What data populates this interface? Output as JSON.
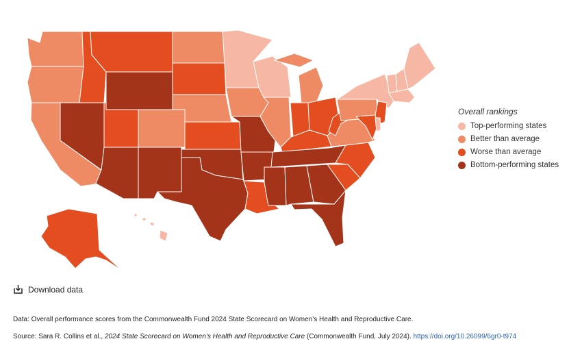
{
  "legend": {
    "title": "Overall rankings",
    "items": [
      {
        "label": "Top-performing states",
        "color": "#f6b8a4"
      },
      {
        "label": "Better than average",
        "color": "#ee8a64"
      },
      {
        "label": "Worse than average",
        "color": "#e44d1f"
      },
      {
        "label": "Bottom-performing states",
        "color": "#a3341a"
      }
    ]
  },
  "download": {
    "label": "Download data"
  },
  "notes": {
    "data_line": "Data: Overall performance scores from the Commonwealth Fund 2024 State Scorecard on Women’s Health and Reproductive Care.",
    "source_prefix": "Source: Sara R. Collins et al., ",
    "source_title": "2024 State Scorecard on Women’s Health and Reproductive Care",
    "source_suffix": " (Commonwealth Fund, July 2024). ",
    "source_link": "https://doi.org/10.26099/6gr0-t974"
  },
  "colors": {
    "top": "#f6b8a4",
    "better": "#ee8a64",
    "worse": "#e44d1f",
    "bottom": "#a3341a"
  },
  "states": {
    "WA": "better",
    "OR": "better",
    "CA": "better",
    "NV": "bottom",
    "ID": "worse",
    "MT": "worse",
    "WY": "bottom",
    "UT": "worse",
    "AZ": "bottom",
    "CO": "better",
    "NM": "bottom",
    "ND": "better",
    "SD": "worse",
    "NE": "better",
    "KS": "worse",
    "OK": "bottom",
    "TX": "bottom",
    "MN": "top",
    "IA": "better",
    "MO": "bottom",
    "AR": "bottom",
    "LA": "worse",
    "WI": "top",
    "IL": "better",
    "MS": "bottom",
    "MI": "better",
    "IN": "worse",
    "OH": "worse",
    "KY": "worse",
    "TN": "bottom",
    "AL": "bottom",
    "GA": "bottom",
    "FL": "bottom",
    "SC": "worse",
    "NC": "worse",
    "VA": "better",
    "WV": "worse",
    "PA": "better",
    "NY": "top",
    "ME": "top",
    "VT": "top",
    "NH": "top",
    "MA": "top",
    "NJ": "worse",
    "MD": "worse",
    "DE": "top",
    "AK": "worse",
    "HI": "top"
  }
}
